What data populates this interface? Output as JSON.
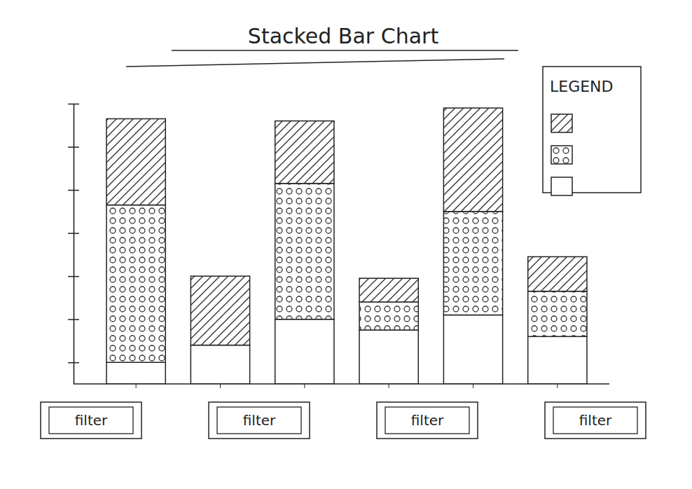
{
  "chart_data": {
    "type": "bar",
    "title": "Stacked Bar Chart",
    "stacked": true,
    "categories": [
      null,
      null,
      null,
      null,
      null,
      null
    ],
    "series": [
      {
        "color": "#ffffff",
        "values": [
          0.5,
          0.9,
          1.5,
          1.25,
          1.6,
          1.1
        ]
      },
      {
        "color": "#333333",
        "values": [
          3.65,
          0,
          3.15,
          0.65,
          2.4,
          1.05
        ]
      },
      {
        "color": "#333333",
        "values": [
          2.0,
          1.6,
          1.45,
          0.55,
          2.4,
          0.8
        ]
      }
    ],
    "ylim": [
      0,
      6.5
    ],
    "yticks": [
      0.5,
      1.5,
      2.5,
      3.5,
      4.5,
      5.5,
      6.5
    ],
    "tick_labels": false,
    "grid": false,
    "legend": "top-right",
    "legend_title": "LEGEND"
  },
  "filters": [
    "filter",
    "filter",
    "filter",
    "filter"
  ]
}
